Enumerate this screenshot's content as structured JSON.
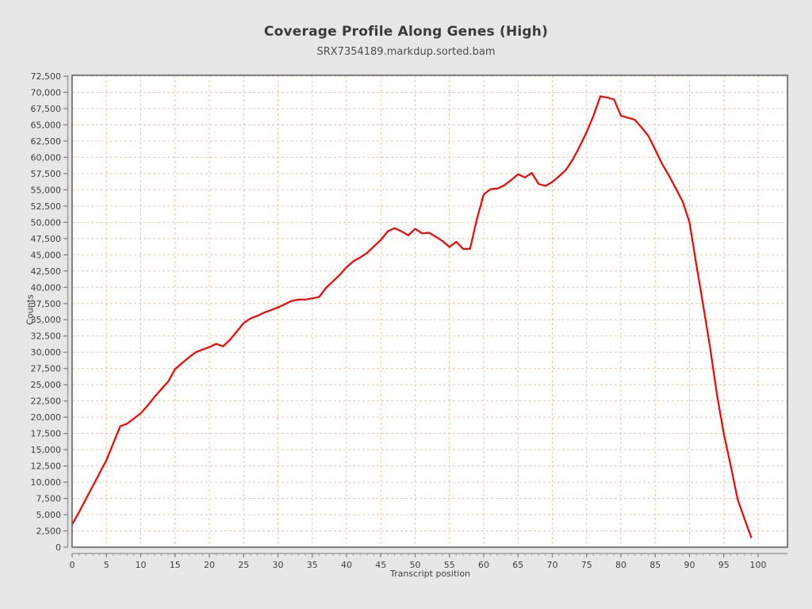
{
  "chart_data": {
    "type": "line",
    "title": "Coverage Profile Along Genes (High)",
    "subtitle": "SRX7354189.markdup.sorted.bam",
    "xlabel": "Transcript position",
    "ylabel": "Counts",
    "x_start": 0,
    "x_step": 1,
    "values": [
      3500,
      5400,
      7400,
      9400,
      11400,
      13400,
      16000,
      18600,
      19000,
      19800,
      20600,
      21800,
      23100,
      24300,
      25500,
      27400,
      28300,
      29200,
      30000,
      30400,
      30800,
      31300,
      30900,
      31900,
      33200,
      34500,
      35200,
      35600,
      36100,
      36500,
      36900,
      37400,
      37900,
      38100,
      38100,
      38300,
      38500,
      39900,
      40900,
      41900,
      43100,
      44000,
      44600,
      45300,
      46300,
      47300,
      48600,
      49100,
      48600,
      48000,
      49000,
      48300,
      48400,
      47800,
      47100,
      46200,
      47000,
      45900,
      45900,
      50500,
      54300,
      55100,
      55200,
      55700,
      56500,
      57400,
      56900,
      57600,
      55900,
      55600,
      56200,
      57100,
      58100,
      59700,
      61700,
      63900,
      66400,
      69400,
      69200,
      68900,
      66400,
      66100,
      65800,
      64600,
      63300,
      61200,
      59000,
      57200,
      55200,
      53200,
      50000,
      43500,
      37200,
      30700,
      23500,
      17400,
      12600,
      7400,
      4400,
      1500
    ],
    "xlim": [
      0,
      104.3
    ],
    "ylim": [
      0,
      72750
    ],
    "x_ticks": [
      0,
      5,
      10,
      15,
      20,
      25,
      30,
      35,
      40,
      45,
      50,
      55,
      60,
      65,
      70,
      75,
      80,
      85,
      90,
      95,
      100
    ],
    "x_tick_labels": [
      "0",
      "5",
      "10",
      "15",
      "20",
      "25",
      "30",
      "35",
      "40",
      "45",
      "50",
      "55",
      "60",
      "65",
      "70",
      "75",
      "80",
      "85",
      "90",
      "95",
      "100"
    ],
    "y_ticks": [
      0,
      2500,
      5000,
      7500,
      10000,
      12500,
      15000,
      17500,
      20000,
      22500,
      25000,
      27500,
      30000,
      32500,
      35000,
      37500,
      40000,
      42500,
      45000,
      47500,
      50000,
      52500,
      55000,
      57500,
      60000,
      62500,
      65000,
      67500,
      70000,
      72500
    ],
    "y_tick_labels": [
      "0",
      "2,500",
      "5,000",
      "7,500",
      "10,000",
      "12,500",
      "15,000",
      "17,500",
      "20,000",
      "22,500",
      "25,000",
      "27,500",
      "30,000",
      "32,500",
      "35,000",
      "37,500",
      "40,000",
      "42,500",
      "45,000",
      "47,500",
      "50,000",
      "52,500",
      "55,000",
      "57,500",
      "60,000",
      "62,500",
      "65,000",
      "67,500",
      "70,000",
      "72,500"
    ],
    "grid": "dashed",
    "legend": "none",
    "colors": {
      "series_line": "#fe0000",
      "grid_line": "#f6c49c",
      "plot_background": "#ffffff",
      "page_background": "#e7e7e7",
      "plot_border": "#6e6e6e",
      "axis_line": "#9e9e9e",
      "tick_text": "#3f3f3f",
      "title_text": "#3b3b3b"
    }
  }
}
